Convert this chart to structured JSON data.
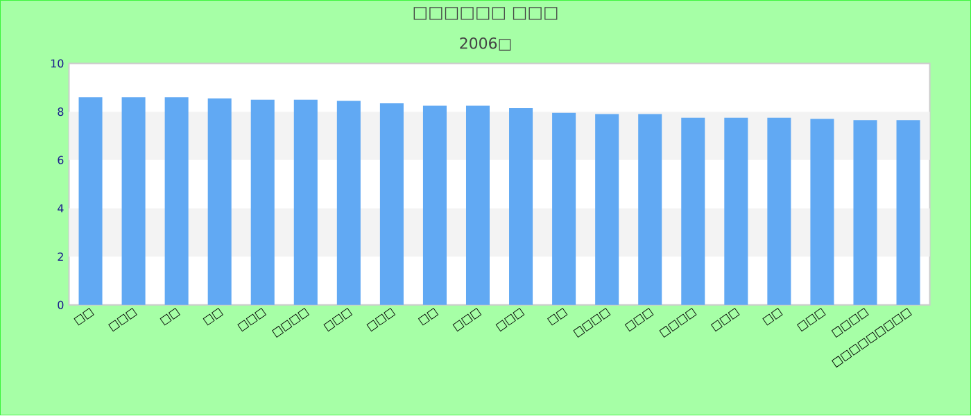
{
  "chart_data": {
    "type": "bar",
    "title": "□□□□□□ □□□",
    "subtitle": "2006□",
    "categories": [
      "□□",
      "□□□",
      "□□",
      "□□",
      "□□□",
      "□□□□",
      "□□□",
      "□□□",
      "□□",
      "□□□",
      "□□□",
      "□□",
      "□□□□",
      "□□□",
      "□□□□",
      "□□□",
      "□□",
      "□□□",
      "□□□□",
      "□□□□□□□□□"
    ],
    "values": [
      8.6,
      8.6,
      8.6,
      8.55,
      8.5,
      8.5,
      8.45,
      8.35,
      8.25,
      8.25,
      8.15,
      7.95,
      7.9,
      7.9,
      7.75,
      7.75,
      7.75,
      7.7,
      7.65,
      7.65
    ],
    "color": "#61a9f3",
    "ylim": [
      0,
      10
    ],
    "yticks": [
      0,
      2,
      4,
      6,
      8,
      10
    ],
    "bands": [
      {
        "axis": "y",
        "from": 2,
        "to": 4,
        "color": "#f3f3f3"
      },
      {
        "axis": "y",
        "from": 6,
        "to": 8,
        "color": "#f3f3f3"
      }
    ]
  }
}
